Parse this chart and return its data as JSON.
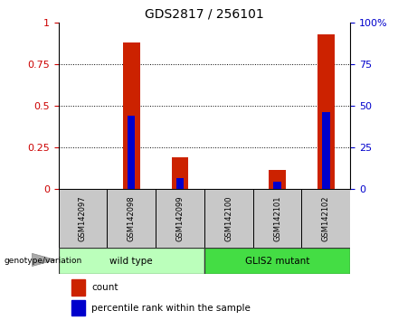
{
  "title": "GDS2817 / 256101",
  "categories": [
    "GSM142097",
    "GSM142098",
    "GSM142099",
    "GSM142100",
    "GSM142101",
    "GSM142102"
  ],
  "count_values": [
    0.0,
    0.88,
    0.19,
    0.0,
    0.115,
    0.93
  ],
  "percentile_values": [
    0.0,
    0.44,
    0.065,
    0.0,
    0.04,
    0.46
  ],
  "group_label": "genotype/variation",
  "left_ylim": [
    0,
    1
  ],
  "right_ylim": [
    0,
    100
  ],
  "left_yticks": [
    0,
    0.25,
    0.5,
    0.75,
    1.0
  ],
  "left_yticklabels": [
    "0",
    "0.25",
    "0.5",
    "0.75",
    "1"
  ],
  "right_yticks": [
    0,
    25,
    50,
    75,
    100
  ],
  "right_yticklabels": [
    "0",
    "25",
    "50",
    "75",
    "100%"
  ],
  "left_ycolor": "#cc0000",
  "right_ycolor": "#0000cc",
  "count_color": "#cc2200",
  "percentile_color": "#0000cc",
  "tick_label_area_color": "#c8c8c8",
  "wt_color": "#bbffbb",
  "mutant_color": "#44dd44",
  "legend_count_label": "count",
  "legend_percentile_label": "percentile rank within the sample",
  "bar_width": 0.35
}
